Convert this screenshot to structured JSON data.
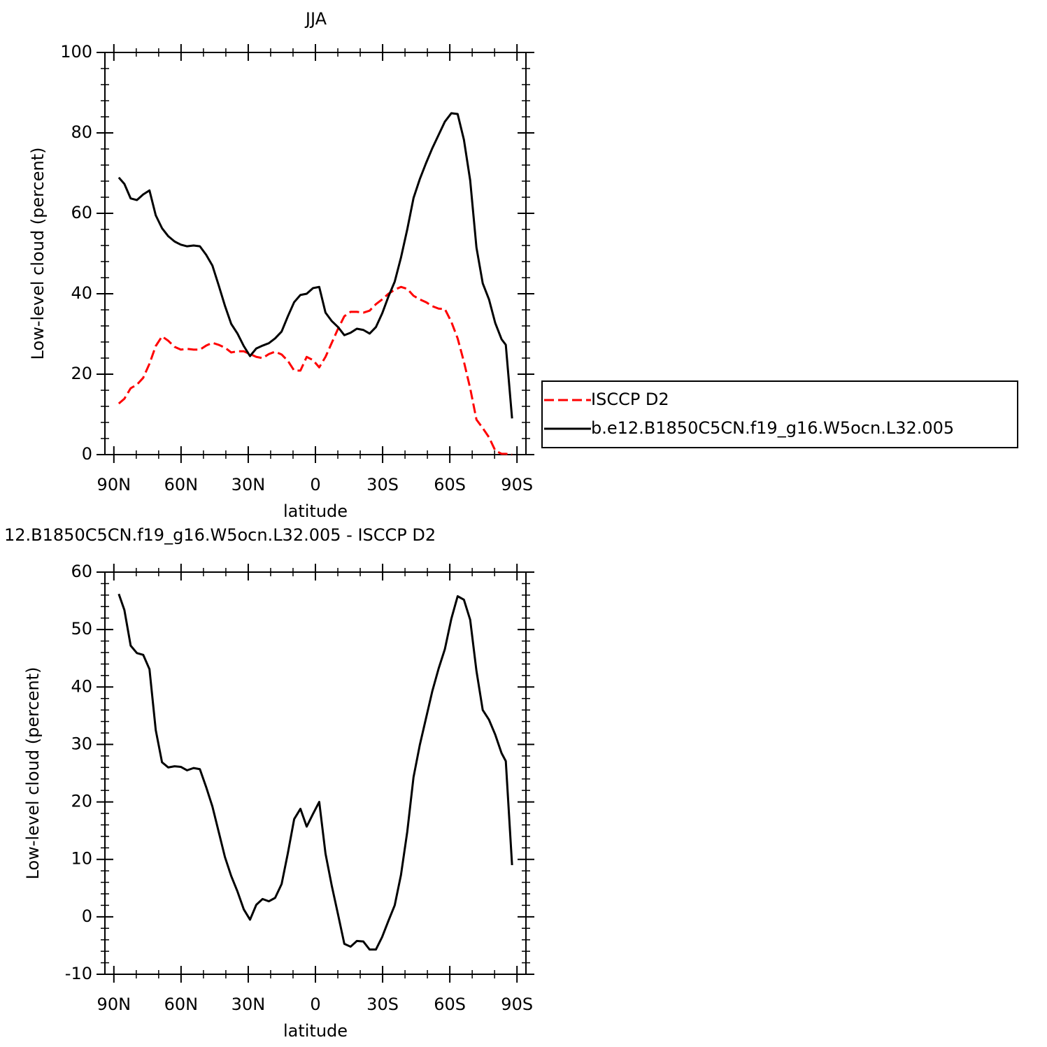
{
  "chart_data": [
    {
      "type": "line",
      "title": "JJA",
      "xlabel": "latitude",
      "ylabel": "Low-level cloud (percent)",
      "x": [
        87.8,
        85.3,
        82.5,
        79.7,
        76.9,
        74.1,
        71.3,
        68.5,
        65.7,
        62.9,
        60.1,
        57.3,
        54.4,
        51.6,
        48.8,
        46.0,
        43.2,
        40.4,
        37.6,
        34.8,
        32.0,
        29.2,
        26.4,
        23.6,
        20.8,
        18.0,
        15.1,
        12.3,
        9.5,
        6.7,
        3.9,
        1.1,
        -1.7,
        -4.5,
        -7.3,
        -10.1,
        -12.9,
        -15.7,
        -18.5,
        -21.4,
        -24.2,
        -27.0,
        -29.8,
        -32.6,
        -35.4,
        -38.2,
        -41.0,
        -43.8,
        -46.6,
        -49.4,
        -52.2,
        -55.0,
        -57.8,
        -60.7,
        -63.5,
        -66.3,
        -69.1,
        -71.9,
        -74.7,
        -77.5,
        -80.3,
        -83.1,
        -85.0,
        -87.8
      ],
      "series": [
        {
          "name": "ISCCP D2",
          "color": "#ff0000",
          "line_style": "dashed",
          "values": [
            12.7,
            13.9,
            16.5,
            17.4,
            19.1,
            22.6,
            27.0,
            29.4,
            28.3,
            26.8,
            26.1,
            26.3,
            26.1,
            26.1,
            27.1,
            27.8,
            27.3,
            26.6,
            25.4,
            25.7,
            25.7,
            25.0,
            24.3,
            24.0,
            25.0,
            25.6,
            24.9,
            23.3,
            20.9,
            20.9,
            24.3,
            23.5,
            21.7,
            24.3,
            27.8,
            31.3,
            34.4,
            35.5,
            35.5,
            35.3,
            35.8,
            37.4,
            38.6,
            40.0,
            41.0,
            41.7,
            41.2,
            39.5,
            38.6,
            37.9,
            36.9,
            36.3,
            36.2,
            33.0,
            28.9,
            23.1,
            16.5,
            8.7,
            6.6,
            4.3,
            1.0,
            0.2,
            0.2,
            0
          ]
        },
        {
          "name": "b.e12.B1850C5CN.f19_g16.W5ocn.L32.005",
          "color": "#000000",
          "line_style": "solid",
          "values": [
            68.9,
            67.3,
            63.7,
            63.3,
            64.7,
            65.7,
            59.5,
            56.3,
            54.3,
            53.0,
            52.2,
            51.8,
            52.0,
            51.8,
            49.7,
            47.0,
            42.1,
            37.0,
            32.5,
            30.1,
            27.0,
            24.5,
            26.4,
            27.1,
            27.7,
            28.9,
            30.6,
            34.4,
            37.9,
            39.7,
            40.0,
            41.4,
            41.7,
            35.3,
            33.2,
            31.7,
            29.7,
            30.3,
            31.3,
            31.0,
            30.1,
            31.7,
            35.1,
            39.3,
            43.0,
            49.0,
            56.0,
            63.8,
            68.5,
            72.5,
            76.2,
            79.5,
            82.8,
            84.9,
            84.7,
            78.3,
            68.2,
            51.5,
            42.6,
            38.6,
            32.7,
            28.7,
            27.3,
            9.0
          ]
        }
      ],
      "xlim": [
        94,
        -94
      ],
      "xticks": [
        {
          "value": 90,
          "label": "90N"
        },
        {
          "value": 60,
          "label": "60N"
        },
        {
          "value": 30,
          "label": "30N"
        },
        0,
        {
          "value": -30,
          "label": "30S"
        },
        {
          "value": -60,
          "label": "60S"
        },
        {
          "value": -90,
          "label": "90S"
        }
      ],
      "ylim": [
        0,
        100
      ],
      "yticks": [
        0,
        20,
        40,
        60,
        80,
        100
      ],
      "legend": "right"
    },
    {
      "type": "line",
      "title": "12.B1850C5CN.f19_g16.W5ocn.L32.005 - ISCCP D2",
      "xlabel": "latitude",
      "ylabel": "Low-level cloud (percent)",
      "x": [
        87.8,
        85.3,
        82.5,
        79.7,
        76.9,
        74.1,
        71.3,
        68.5,
        65.7,
        62.9,
        60.1,
        57.3,
        54.4,
        51.6,
        48.8,
        46.0,
        43.2,
        40.4,
        37.6,
        34.8,
        32.0,
        29.2,
        26.4,
        23.6,
        20.8,
        18.0,
        15.1,
        12.3,
        9.5,
        6.7,
        3.9,
        1.1,
        -1.7,
        -4.5,
        -7.3,
        -10.1,
        -12.9,
        -15.7,
        -18.5,
        -21.4,
        -24.2,
        -27.0,
        -29.8,
        -32.6,
        -35.4,
        -38.2,
        -41.0,
        -43.8,
        -46.6,
        -49.4,
        -52.2,
        -55.0,
        -57.8,
        -60.7,
        -63.5,
        -66.3,
        -69.1,
        -71.9,
        -74.7,
        -77.5,
        -80.3,
        -83.1,
        -85.0,
        -87.8
      ],
      "series": [
        {
          "color": "#000000",
          "line_style": "solid",
          "values": [
            56.2,
            53.4,
            47.2,
            45.9,
            45.6,
            43.1,
            32.5,
            26.9,
            26.0,
            26.2,
            26.1,
            25.5,
            25.9,
            25.7,
            22.6,
            19.2,
            14.8,
            10.4,
            7.1,
            4.4,
            1.3,
            -0.5,
            2.1,
            3.1,
            2.7,
            3.3,
            5.7,
            11.1,
            17.0,
            18.8,
            15.7,
            17.9,
            20.0,
            11.0,
            5.4,
            0.4,
            -4.7,
            -5.2,
            -4.2,
            -4.3,
            -5.7,
            -5.7,
            -3.5,
            -0.7,
            2.0,
            7.3,
            14.8,
            24.3,
            29.9,
            34.6,
            39.3,
            43.2,
            46.6,
            51.9,
            55.8,
            55.2,
            51.7,
            42.8,
            36.0,
            34.3,
            31.7,
            28.5,
            27.1,
            9.0
          ]
        }
      ],
      "xlim": [
        94,
        -94
      ],
      "xticks": [
        {
          "value": 90,
          "label": "90N"
        },
        {
          "value": 60,
          "label": "60N"
        },
        {
          "value": 30,
          "label": "30N"
        },
        0,
        {
          "value": -30,
          "label": "30S"
        },
        {
          "value": -60,
          "label": "60S"
        },
        {
          "value": -90,
          "label": "90S"
        }
      ],
      "ylim": [
        -10,
        60
      ],
      "yticks": [
        -10,
        0,
        10,
        20,
        30,
        40,
        50,
        60
      ]
    }
  ]
}
